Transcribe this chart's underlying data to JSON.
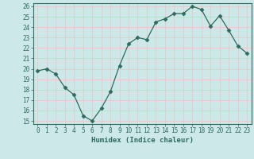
{
  "x": [
    0,
    1,
    2,
    3,
    4,
    5,
    6,
    7,
    8,
    9,
    10,
    11,
    12,
    13,
    14,
    15,
    16,
    17,
    18,
    19,
    20,
    21,
    22,
    23
  ],
  "y": [
    19.8,
    20.0,
    19.5,
    18.2,
    17.5,
    15.5,
    15.0,
    16.2,
    17.8,
    20.3,
    22.4,
    23.0,
    22.8,
    24.5,
    24.8,
    25.3,
    25.3,
    26.0,
    25.7,
    24.1,
    25.1,
    23.7,
    22.2,
    21.5
  ],
  "xlabel": "Humidex (Indice chaleur)",
  "xlim": [
    -0.5,
    23.5
  ],
  "ylim": [
    14.7,
    26.3
  ],
  "yticks": [
    15,
    16,
    17,
    18,
    19,
    20,
    21,
    22,
    23,
    24,
    25,
    26
  ],
  "xticks": [
    0,
    1,
    2,
    3,
    4,
    5,
    6,
    7,
    8,
    9,
    10,
    11,
    12,
    13,
    14,
    15,
    16,
    17,
    18,
    19,
    20,
    21,
    22,
    23
  ],
  "line_color": "#2e6b5e",
  "marker": "D",
  "marker_size": 2.5,
  "bg_color": "#cce8e8",
  "grid_color": "#e8c8c8",
  "xlabel_color": "#2e6b5e",
  "tick_color": "#2e6b5e",
  "spine_color": "#2e6b5e",
  "tick_fontsize": 5.5,
  "xlabel_fontsize": 6.5
}
